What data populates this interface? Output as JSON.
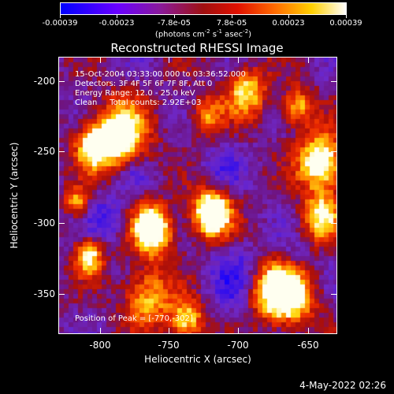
{
  "colorbar": {
    "labels": [
      "-0.00039",
      "-0.00023",
      "-7.8e-05",
      "7.8e-05",
      "0.00023",
      "0.00039"
    ],
    "units": "(photons cm",
    "units_exp1": "-2",
    "units_mid": " s",
    "units_exp2": "-1",
    "units_mid2": " asec",
    "units_exp3": "-2",
    "units_end": ")"
  },
  "title": "Reconstructed RHESSI Image",
  "info": {
    "line1": "15-Oct-2004 03:33:00.000 to 03:36:52.000",
    "line2": "Detectors: 3F 4F 5F 6F 7F 8F, Att 0",
    "line3": "Energy Range: 12.0 - 25.0 keV",
    "line4": "Clean     Total counts: 2.92E+03",
    "peak": "Position of Peak = [-770,-302]"
  },
  "axes": {
    "xlabel": "Heliocentric X (arcsec)",
    "ylabel": "Heliocentric Y (arcsec)",
    "xticks": [
      "-800",
      "-750",
      "-700",
      "-650"
    ],
    "yticks": [
      "-200",
      "-250",
      "-300",
      "-350"
    ]
  },
  "timestamp": "4-May-2022 02:26",
  "colors": {
    "low": "#0000ff",
    "mid_low": "#7a2aa0",
    "mid": "#b01000",
    "high": "#ff8000",
    "max": "#ffffff"
  },
  "chart_data": {
    "type": "heatmap",
    "title": "Reconstructed RHESSI Image",
    "xlabel": "Heliocentric X (arcsec)",
    "ylabel": "Heliocentric Y (arcsec)",
    "xlim": [
      -828,
      -632
    ],
    "ylim": [
      -378,
      -185
    ],
    "colorbar_range": [
      -0.00039,
      0.00039
    ],
    "peak": [
      -770,
      -302
    ]
  }
}
